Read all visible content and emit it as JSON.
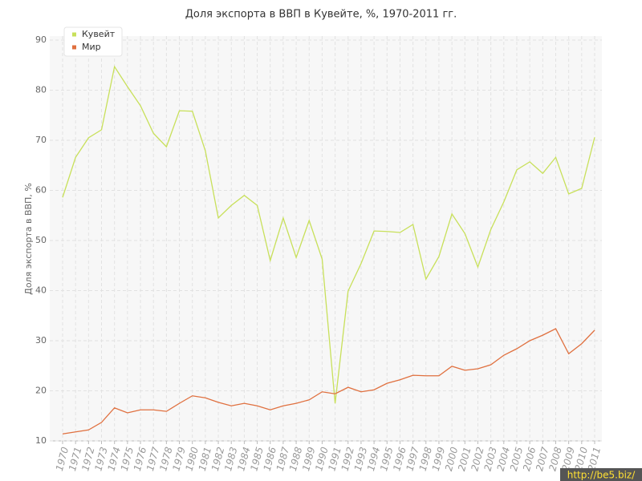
{
  "chart_data": {
    "type": "line",
    "title": "Доля экспорта в ВВП в Кувейте, %, 1970-2011 гг.",
    "y_label": "Доля экспорта в ВВП, %",
    "categories": [
      "1970",
      "1971",
      "1972",
      "1973",
      "1974",
      "1975",
      "1976",
      "1977",
      "1978",
      "1979",
      "1980",
      "1981",
      "1982",
      "1983",
      "1984",
      "1985",
      "1986",
      "1987",
      "1988",
      "1989",
      "1990",
      "1991",
      "1992",
      "1993",
      "1994",
      "1995",
      "1996",
      "1997",
      "1998",
      "1999",
      "2000",
      "2001",
      "2002",
      "2003",
      "2004",
      "2005",
      "2006",
      "2007",
      "2008",
      "2009",
      "2010",
      "2011"
    ],
    "series": [
      {
        "name": "Кувейт",
        "color": "#c8e05a",
        "values": [
          58.6,
          66.6,
          70.5,
          72.1,
          84.7,
          80.7,
          76.9,
          71.4,
          68.7,
          75.9,
          75.8,
          67.9,
          54.5,
          57.0,
          59.0,
          57.0,
          46.0,
          54.5,
          46.6,
          54.0,
          46.3,
          17.5,
          39.9,
          45.4,
          51.9,
          51.8,
          51.6,
          53.2,
          42.3,
          46.8,
          55.3,
          51.4,
          44.7,
          52.2,
          57.7,
          64.1,
          65.7,
          63.4,
          66.6,
          59.3,
          60.4,
          70.6
        ]
      },
      {
        "name": "Мир",
        "color": "#e0703f",
        "values": [
          11.4,
          11.8,
          12.2,
          13.7,
          16.6,
          15.6,
          16.2,
          16.2,
          15.9,
          17.5,
          19.0,
          18.6,
          17.7,
          17.0,
          17.5,
          17.0,
          16.2,
          17.0,
          17.5,
          18.2,
          19.8,
          19.4,
          20.7,
          19.8,
          20.2,
          21.5,
          22.2,
          23.1,
          23.0,
          23.0,
          24.9,
          24.1,
          24.4,
          25.2,
          27.1,
          28.4,
          30.0,
          31.1,
          32.4,
          27.4,
          29.4,
          32.1
        ]
      }
    ],
    "ylim": [
      10,
      90
    ],
    "yticks": [
      10,
      20,
      30,
      40,
      50,
      60,
      70,
      80,
      90
    ],
    "grid": true,
    "legend": "top-left",
    "watermark": "http://be5.biz/"
  }
}
